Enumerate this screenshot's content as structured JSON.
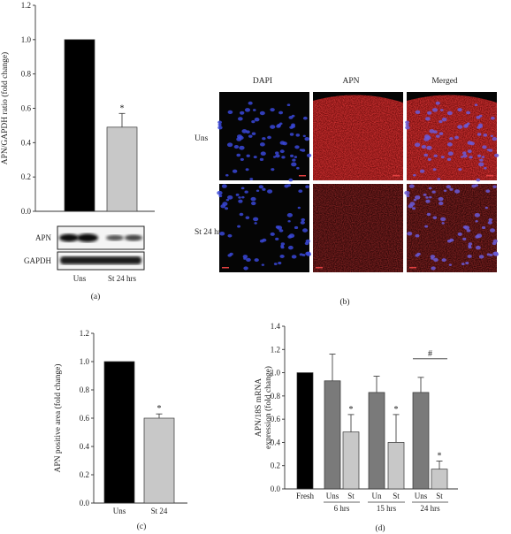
{
  "panels": {
    "a": {
      "caption": "(a)",
      "western_blot": {
        "rows": [
          "APN",
          "GAPDH"
        ],
        "lanes": [
          "Uns",
          "St 24 hrs"
        ]
      }
    },
    "b": {
      "caption": "(b)",
      "columns": [
        "DAPI",
        "APN",
        "Merged"
      ],
      "rows": [
        "Uns",
        "St 24 hrs"
      ]
    },
    "c": {
      "caption": "(c)"
    },
    "d": {
      "caption": "(d)"
    }
  },
  "chart_data": [
    {
      "panel": "a",
      "type": "bar",
      "categories": [
        "Uns",
        "St 24 hrs"
      ],
      "values": [
        1.0,
        0.49
      ],
      "errors": [
        0,
        0.08
      ],
      "colors": [
        "#000000",
        "#c8c8c8"
      ],
      "significance": [
        "",
        "*"
      ],
      "ylabel": "APN/GAPDH ratio (fold change)",
      "ylim": [
        0,
        1.2
      ],
      "yticks": [
        "0.0",
        "0.2",
        "0.4",
        "0.6",
        "0.8",
        "1.0",
        "1.2"
      ],
      "grid": false
    },
    {
      "panel": "c",
      "type": "bar",
      "categories": [
        "Uns",
        "St 24"
      ],
      "values": [
        1.0,
        0.6
      ],
      "errors": [
        0,
        0.03
      ],
      "colors": [
        "#000000",
        "#c8c8c8"
      ],
      "significance": [
        "",
        "*"
      ],
      "ylabel": "APN positive area (fold change)",
      "ylim": [
        0,
        1.2
      ],
      "yticks": [
        "0.0",
        "0.2",
        "0.4",
        "0.6",
        "0.8",
        "1.0",
        "1.2"
      ],
      "grid": false
    },
    {
      "panel": "d",
      "type": "bar",
      "categories": [
        "Fresh",
        "Uns",
        "St",
        "Un",
        "St",
        "Uns",
        "St"
      ],
      "groups": [
        {
          "label": "",
          "bars": [
            0
          ]
        },
        {
          "label": "6 hrs",
          "bars": [
            1,
            2
          ]
        },
        {
          "label": "15 hrs",
          "bars": [
            3,
            4
          ]
        },
        {
          "label": "24 hrs",
          "bars": [
            5,
            6
          ]
        }
      ],
      "values": [
        1.0,
        0.93,
        0.49,
        0.83,
        0.4,
        0.83,
        0.17
      ],
      "errors": [
        0,
        0.23,
        0.15,
        0.14,
        0.24,
        0.13,
        0.07
      ],
      "colors": [
        "#000000",
        "#7a7a7a",
        "#c8c8c8",
        "#7a7a7a",
        "#c8c8c8",
        "#7a7a7a",
        "#c8c8c8"
      ],
      "significance": [
        "",
        "",
        "*",
        "",
        "*",
        "",
        "*"
      ],
      "bracket": {
        "bars": [
          5,
          6
        ],
        "label": "#"
      },
      "ylabel": "APN/18S mRNA expression (fold change)",
      "ylim": [
        0,
        1.4
      ],
      "yticks": [
        "0.0",
        "0.2",
        "0.4",
        "0.6",
        "0.8",
        "1.0",
        "1.2",
        "1.4"
      ],
      "grid": false
    }
  ]
}
